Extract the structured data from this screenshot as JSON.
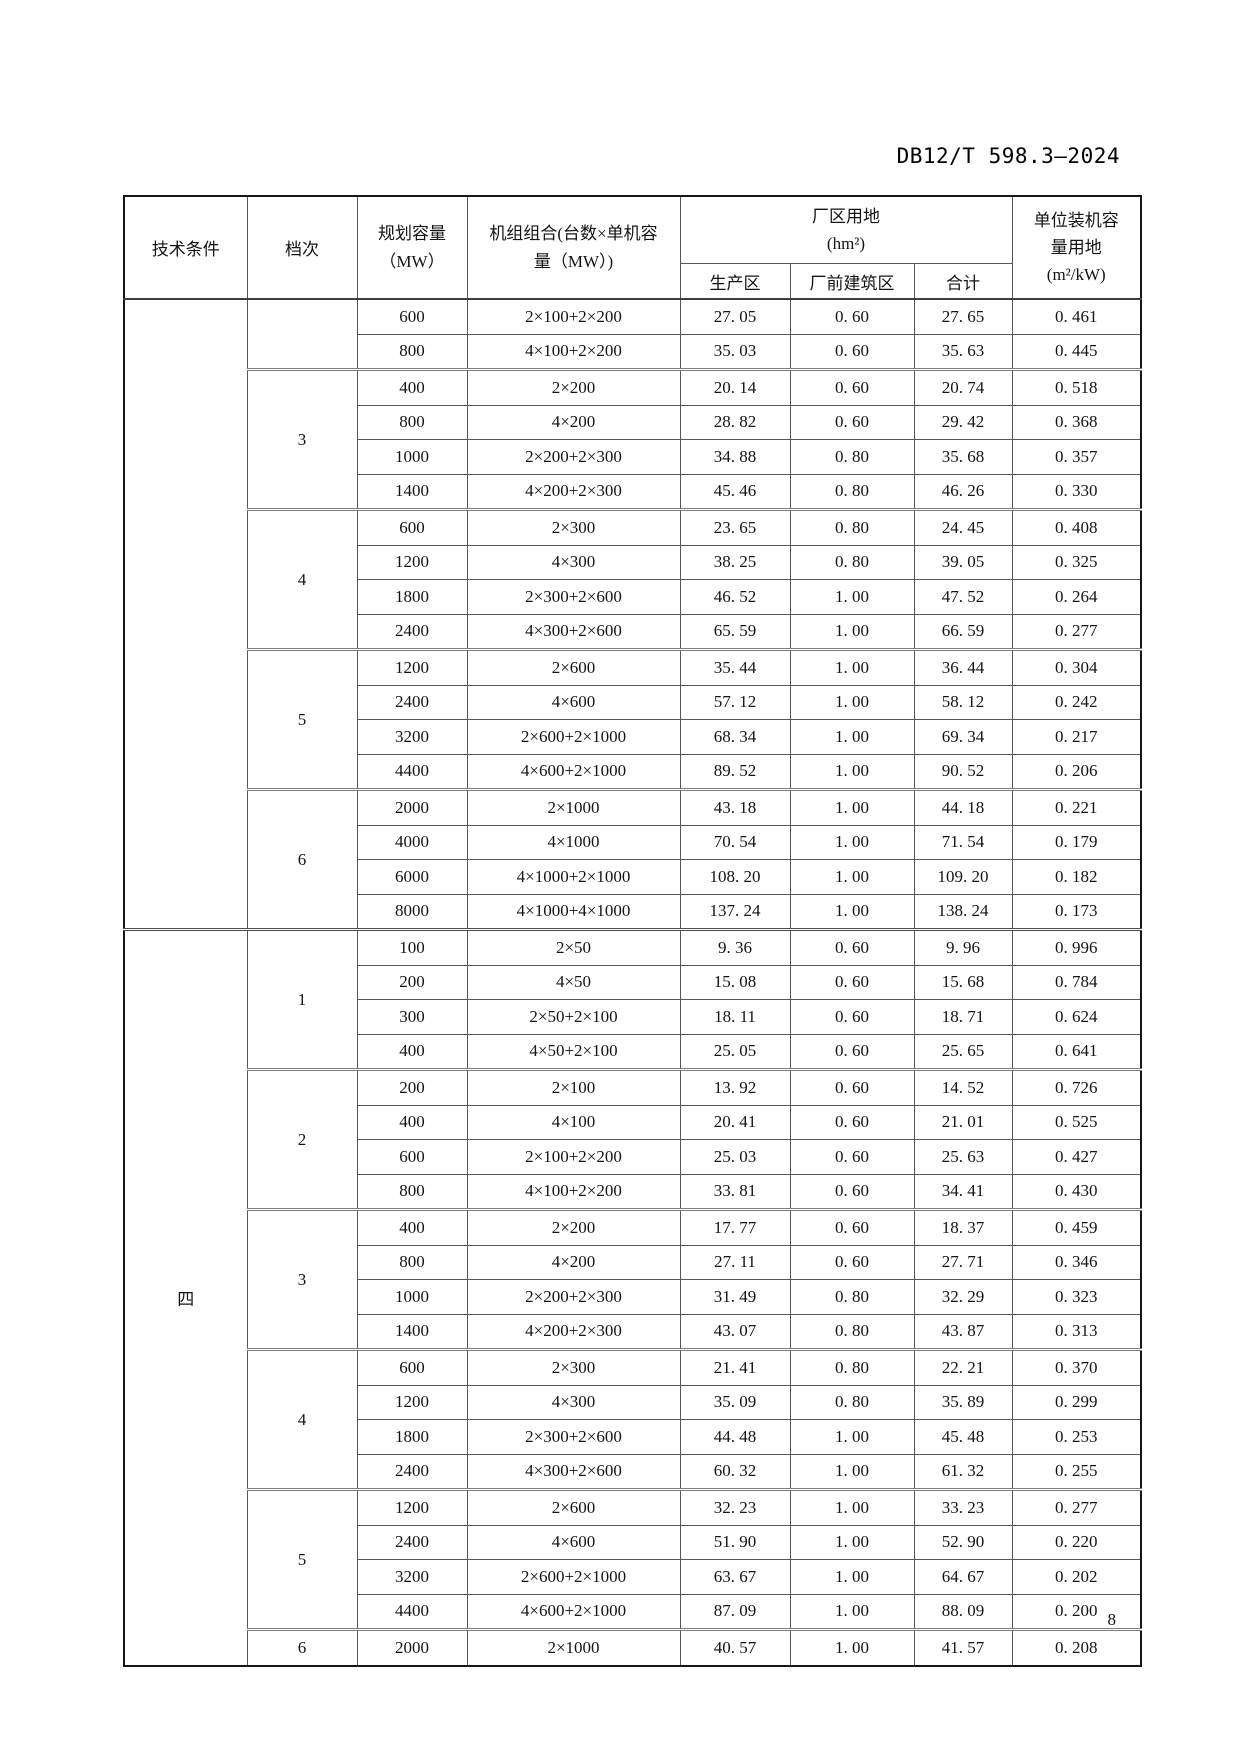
{
  "doc": {
    "number": "DB12/T 598.3—2024",
    "page_number": "8"
  },
  "table": {
    "headers": {
      "tech": "技术条件",
      "grade": "档次",
      "capacity": [
        "规划容量",
        "（MW）"
      ],
      "units": [
        "机组组合(台数×单机容",
        "量（MW）)"
      ],
      "land": [
        "厂区用地",
        "(hm²)"
      ],
      "prod": "生产区",
      "front": "厂前建筑区",
      "total": "合计",
      "unit_land": [
        "单位装机容",
        "量用地",
        "(m²/kW)"
      ]
    },
    "sections": [
      {
        "tech": "",
        "groups": [
          {
            "grade": "",
            "rows": [
              [
                "600",
                "2×100+2×200",
                "27. 05",
                "0. 60",
                "27. 65",
                "0. 461"
              ],
              [
                "800",
                "4×100+2×200",
                "35. 03",
                "0. 60",
                "35. 63",
                "0. 445"
              ]
            ]
          },
          {
            "grade": "3",
            "rows": [
              [
                "400",
                "2×200",
                "20. 14",
                "0. 60",
                "20. 74",
                "0. 518"
              ],
              [
                "800",
                "4×200",
                "28. 82",
                "0. 60",
                "29. 42",
                "0. 368"
              ],
              [
                "1000",
                "2×200+2×300",
                "34. 88",
                "0. 80",
                "35. 68",
                "0. 357"
              ],
              [
                "1400",
                "4×200+2×300",
                "45. 46",
                "0. 80",
                "46. 26",
                "0. 330"
              ]
            ]
          },
          {
            "grade": "4",
            "rows": [
              [
                "600",
                "2×300",
                "23. 65",
                "0. 80",
                "24. 45",
                "0. 408"
              ],
              [
                "1200",
                "4×300",
                "38. 25",
                "0. 80",
                "39. 05",
                "0. 325"
              ],
              [
                "1800",
                "2×300+2×600",
                "46. 52",
                "1. 00",
                "47. 52",
                "0. 264"
              ],
              [
                "2400",
                "4×300+2×600",
                "65. 59",
                "1. 00",
                "66. 59",
                "0. 277"
              ]
            ]
          },
          {
            "grade": "5",
            "rows": [
              [
                "1200",
                "2×600",
                "35. 44",
                "1. 00",
                "36. 44",
                "0. 304"
              ],
              [
                "2400",
                "4×600",
                "57. 12",
                "1. 00",
                "58. 12",
                "0. 242"
              ],
              [
                "3200",
                "2×600+2×1000",
                "68. 34",
                "1. 00",
                "69. 34",
                "0. 217"
              ],
              [
                "4400",
                "4×600+2×1000",
                "89. 52",
                "1. 00",
                "90. 52",
                "0. 206"
              ]
            ]
          },
          {
            "grade": "6",
            "rows": [
              [
                "2000",
                "2×1000",
                "43. 18",
                "1. 00",
                "44. 18",
                "0. 221"
              ],
              [
                "4000",
                "4×1000",
                "70. 54",
                "1. 00",
                "71. 54",
                "0. 179"
              ],
              [
                "6000",
                "4×1000+2×1000",
                "108. 20",
                "1. 00",
                "109. 20",
                "0. 182"
              ],
              [
                "8000",
                "4×1000+4×1000",
                "137. 24",
                "1. 00",
                "138. 24",
                "0. 173"
              ]
            ]
          }
        ]
      },
      {
        "tech": "四",
        "groups": [
          {
            "grade": "1",
            "rows": [
              [
                "100",
                "2×50",
                "9. 36",
                "0. 60",
                "9. 96",
                "0. 996"
              ],
              [
                "200",
                "4×50",
                "15. 08",
                "0. 60",
                "15. 68",
                "0. 784"
              ],
              [
                "300",
                "2×50+2×100",
                "18. 11",
                "0. 60",
                "18. 71",
                "0. 624"
              ],
              [
                "400",
                "4×50+2×100",
                "25. 05",
                "0. 60",
                "25. 65",
                "0. 641"
              ]
            ]
          },
          {
            "grade": "2",
            "rows": [
              [
                "200",
                "2×100",
                "13. 92",
                "0. 60",
                "14. 52",
                "0. 726"
              ],
              [
                "400",
                "4×100",
                "20. 41",
                "0. 60",
                "21. 01",
                "0. 525"
              ],
              [
                "600",
                "2×100+2×200",
                "25. 03",
                "0. 60",
                "25. 63",
                "0. 427"
              ],
              [
                "800",
                "4×100+2×200",
                "33. 81",
                "0. 60",
                "34. 41",
                "0. 430"
              ]
            ]
          },
          {
            "grade": "3",
            "rows": [
              [
                "400",
                "2×200",
                "17. 77",
                "0. 60",
                "18. 37",
                "0. 459"
              ],
              [
                "800",
                "4×200",
                "27. 11",
                "0. 60",
                "27. 71",
                "0. 346"
              ],
              [
                "1000",
                "2×200+2×300",
                "31. 49",
                "0. 80",
                "32. 29",
                "0. 323"
              ],
              [
                "1400",
                "4×200+2×300",
                "43. 07",
                "0. 80",
                "43. 87",
                "0. 313"
              ]
            ]
          },
          {
            "grade": "4",
            "rows": [
              [
                "600",
                "2×300",
                "21. 41",
                "0. 80",
                "22. 21",
                "0. 370"
              ],
              [
                "1200",
                "4×300",
                "35. 09",
                "0. 80",
                "35. 89",
                "0. 299"
              ],
              [
                "1800",
                "2×300+2×600",
                "44. 48",
                "1. 00",
                "45. 48",
                "0. 253"
              ],
              [
                "2400",
                "4×300+2×600",
                "60. 32",
                "1. 00",
                "61. 32",
                "0. 255"
              ]
            ]
          },
          {
            "grade": "5",
            "rows": [
              [
                "1200",
                "2×600",
                "32. 23",
                "1. 00",
                "33. 23",
                "0. 277"
              ],
              [
                "2400",
                "4×600",
                "51. 90",
                "1. 00",
                "52. 90",
                "0. 220"
              ],
              [
                "3200",
                "2×600+2×1000",
                "63. 67",
                "1. 00",
                "64. 67",
                "0. 202"
              ],
              [
                "4400",
                "4×600+2×1000",
                "87. 09",
                "1. 00",
                "88. 09",
                "0. 200"
              ]
            ]
          },
          {
            "grade": "6",
            "rows": [
              [
                "2000",
                "2×1000",
                "40. 57",
                "1. 00",
                "41. 57",
                "0. 208"
              ]
            ]
          }
        ]
      }
    ]
  }
}
